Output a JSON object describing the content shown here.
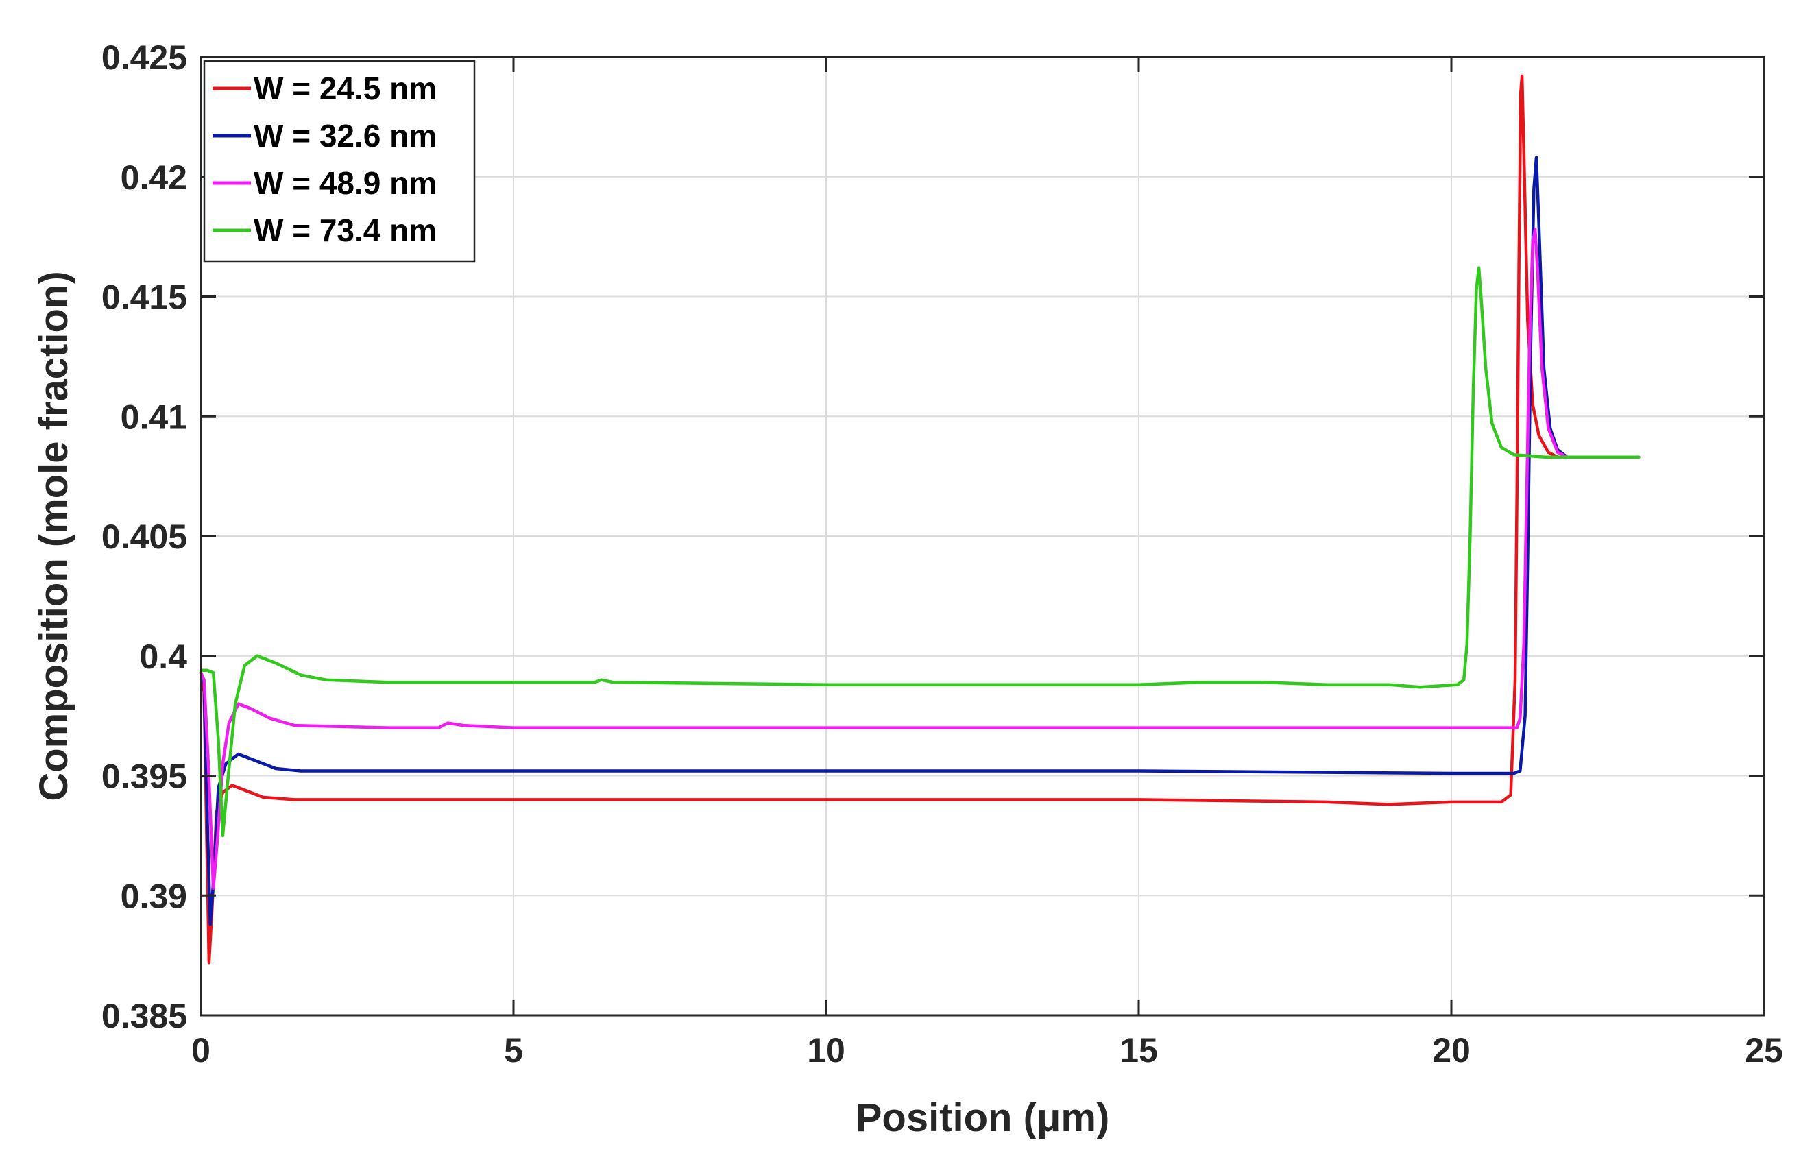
{
  "chart_data": {
    "type": "line",
    "title": "",
    "xlabel": "Position (μm)",
    "ylabel": "Composition (mole fraction)",
    "xlim": [
      0,
      25
    ],
    "ylim": [
      0.385,
      0.425
    ],
    "x_ticks": [
      "0",
      "5",
      "10",
      "15",
      "20",
      "25"
    ],
    "y_ticks": [
      "0.385",
      "0.39",
      "0.395",
      "0.4",
      "0.405",
      "0.41",
      "0.415",
      "0.42",
      "0.425"
    ],
    "x_tick_values": [
      0,
      5,
      10,
      15,
      20,
      25
    ],
    "y_tick_values": [
      0.385,
      0.39,
      0.395,
      0.4,
      0.405,
      0.41,
      0.415,
      0.42,
      0.425
    ],
    "grid": true,
    "legend_position": "top-left",
    "series": [
      {
        "name": "W = 24.5 nm",
        "color": "#e8141c",
        "points": [
          [
            0,
            0.3993
          ],
          [
            0.05,
            0.3985
          ],
          [
            0.1,
            0.3915
          ],
          [
            0.13,
            0.3872
          ],
          [
            0.18,
            0.3895
          ],
          [
            0.25,
            0.3935
          ],
          [
            0.35,
            0.3943
          ],
          [
            0.5,
            0.3946
          ],
          [
            0.7,
            0.3944
          ],
          [
            1.0,
            0.3941
          ],
          [
            1.5,
            0.394
          ],
          [
            5,
            0.394
          ],
          [
            10,
            0.394
          ],
          [
            15,
            0.394
          ],
          [
            18,
            0.3939
          ],
          [
            19,
            0.3938
          ],
          [
            20,
            0.3939
          ],
          [
            20.8,
            0.3939
          ],
          [
            20.95,
            0.3942
          ],
          [
            21.02,
            0.399
          ],
          [
            21.05,
            0.407
          ],
          [
            21.08,
            0.416
          ],
          [
            21.11,
            0.4235
          ],
          [
            21.13,
            0.4242
          ],
          [
            21.16,
            0.421
          ],
          [
            21.22,
            0.414
          ],
          [
            21.3,
            0.4105
          ],
          [
            21.4,
            0.4092
          ],
          [
            21.55,
            0.4085
          ],
          [
            21.7,
            0.4083
          ]
        ]
      },
      {
        "name": "W = 32.6 nm",
        "color": "#0a1aa8",
        "points": [
          [
            0,
            0.3993
          ],
          [
            0.05,
            0.3988
          ],
          [
            0.1,
            0.3935
          ],
          [
            0.15,
            0.3888
          ],
          [
            0.2,
            0.3905
          ],
          [
            0.28,
            0.3945
          ],
          [
            0.4,
            0.3955
          ],
          [
            0.6,
            0.3959
          ],
          [
            0.8,
            0.3957
          ],
          [
            1.2,
            0.3953
          ],
          [
            1.6,
            0.3952
          ],
          [
            5,
            0.3952
          ],
          [
            10,
            0.3952
          ],
          [
            15,
            0.3952
          ],
          [
            20,
            0.3951
          ],
          [
            21.0,
            0.3951
          ],
          [
            21.1,
            0.3952
          ],
          [
            21.18,
            0.3975
          ],
          [
            21.22,
            0.404
          ],
          [
            21.27,
            0.413
          ],
          [
            21.32,
            0.4195
          ],
          [
            21.36,
            0.4208
          ],
          [
            21.4,
            0.418
          ],
          [
            21.48,
            0.412
          ],
          [
            21.58,
            0.4095
          ],
          [
            21.7,
            0.4086
          ],
          [
            21.85,
            0.4083
          ]
        ]
      },
      {
        "name": "W = 48.9 nm",
        "color": "#f01ef0",
        "points": [
          [
            0,
            0.3993
          ],
          [
            0.05,
            0.399
          ],
          [
            0.12,
            0.3955
          ],
          [
            0.2,
            0.3903
          ],
          [
            0.27,
            0.3925
          ],
          [
            0.35,
            0.3955
          ],
          [
            0.45,
            0.3972
          ],
          [
            0.6,
            0.398
          ],
          [
            0.8,
            0.3978
          ],
          [
            1.1,
            0.3974
          ],
          [
            1.5,
            0.3971
          ],
          [
            3,
            0.397
          ],
          [
            3.8,
            0.397
          ],
          [
            3.95,
            0.3972
          ],
          [
            4.2,
            0.3971
          ],
          [
            5,
            0.397
          ],
          [
            10,
            0.397
          ],
          [
            15,
            0.397
          ],
          [
            20,
            0.397
          ],
          [
            21.05,
            0.397
          ],
          [
            21.1,
            0.3974
          ],
          [
            21.16,
            0.4005
          ],
          [
            21.2,
            0.406
          ],
          [
            21.25,
            0.413
          ],
          [
            21.3,
            0.4172
          ],
          [
            21.34,
            0.4178
          ],
          [
            21.38,
            0.416
          ],
          [
            21.45,
            0.412
          ],
          [
            21.55,
            0.4095
          ],
          [
            21.7,
            0.4085
          ],
          [
            21.85,
            0.4083
          ]
        ]
      },
      {
        "name": "W = 73.4 nm",
        "color": "#32c81e",
        "points": [
          [
            0,
            0.3994
          ],
          [
            0.1,
            0.3994
          ],
          [
            0.2,
            0.3993
          ],
          [
            0.28,
            0.3965
          ],
          [
            0.35,
            0.3925
          ],
          [
            0.42,
            0.3945
          ],
          [
            0.55,
            0.398
          ],
          [
            0.7,
            0.3996
          ],
          [
            0.9,
            0.4
          ],
          [
            1.2,
            0.3997
          ],
          [
            1.6,
            0.3992
          ],
          [
            2.0,
            0.399
          ],
          [
            3,
            0.3989
          ],
          [
            5,
            0.3989
          ],
          [
            6.3,
            0.3989
          ],
          [
            6.4,
            0.399
          ],
          [
            6.6,
            0.3989
          ],
          [
            10,
            0.3988
          ],
          [
            15,
            0.3988
          ],
          [
            16,
            0.3989
          ],
          [
            17,
            0.3989
          ],
          [
            18,
            0.3988
          ],
          [
            19,
            0.3988
          ],
          [
            19.5,
            0.3987
          ],
          [
            20.1,
            0.3988
          ],
          [
            20.2,
            0.399
          ],
          [
            20.25,
            0.4005
          ],
          [
            20.3,
            0.405
          ],
          [
            20.35,
            0.411
          ],
          [
            20.4,
            0.4153
          ],
          [
            20.44,
            0.4162
          ],
          [
            20.48,
            0.4148
          ],
          [
            20.55,
            0.412
          ],
          [
            20.65,
            0.4097
          ],
          [
            20.8,
            0.4087
          ],
          [
            21.0,
            0.4084
          ],
          [
            21.5,
            0.4083
          ],
          [
            22,
            0.4083
          ],
          [
            23,
            0.4083
          ]
        ]
      }
    ]
  }
}
